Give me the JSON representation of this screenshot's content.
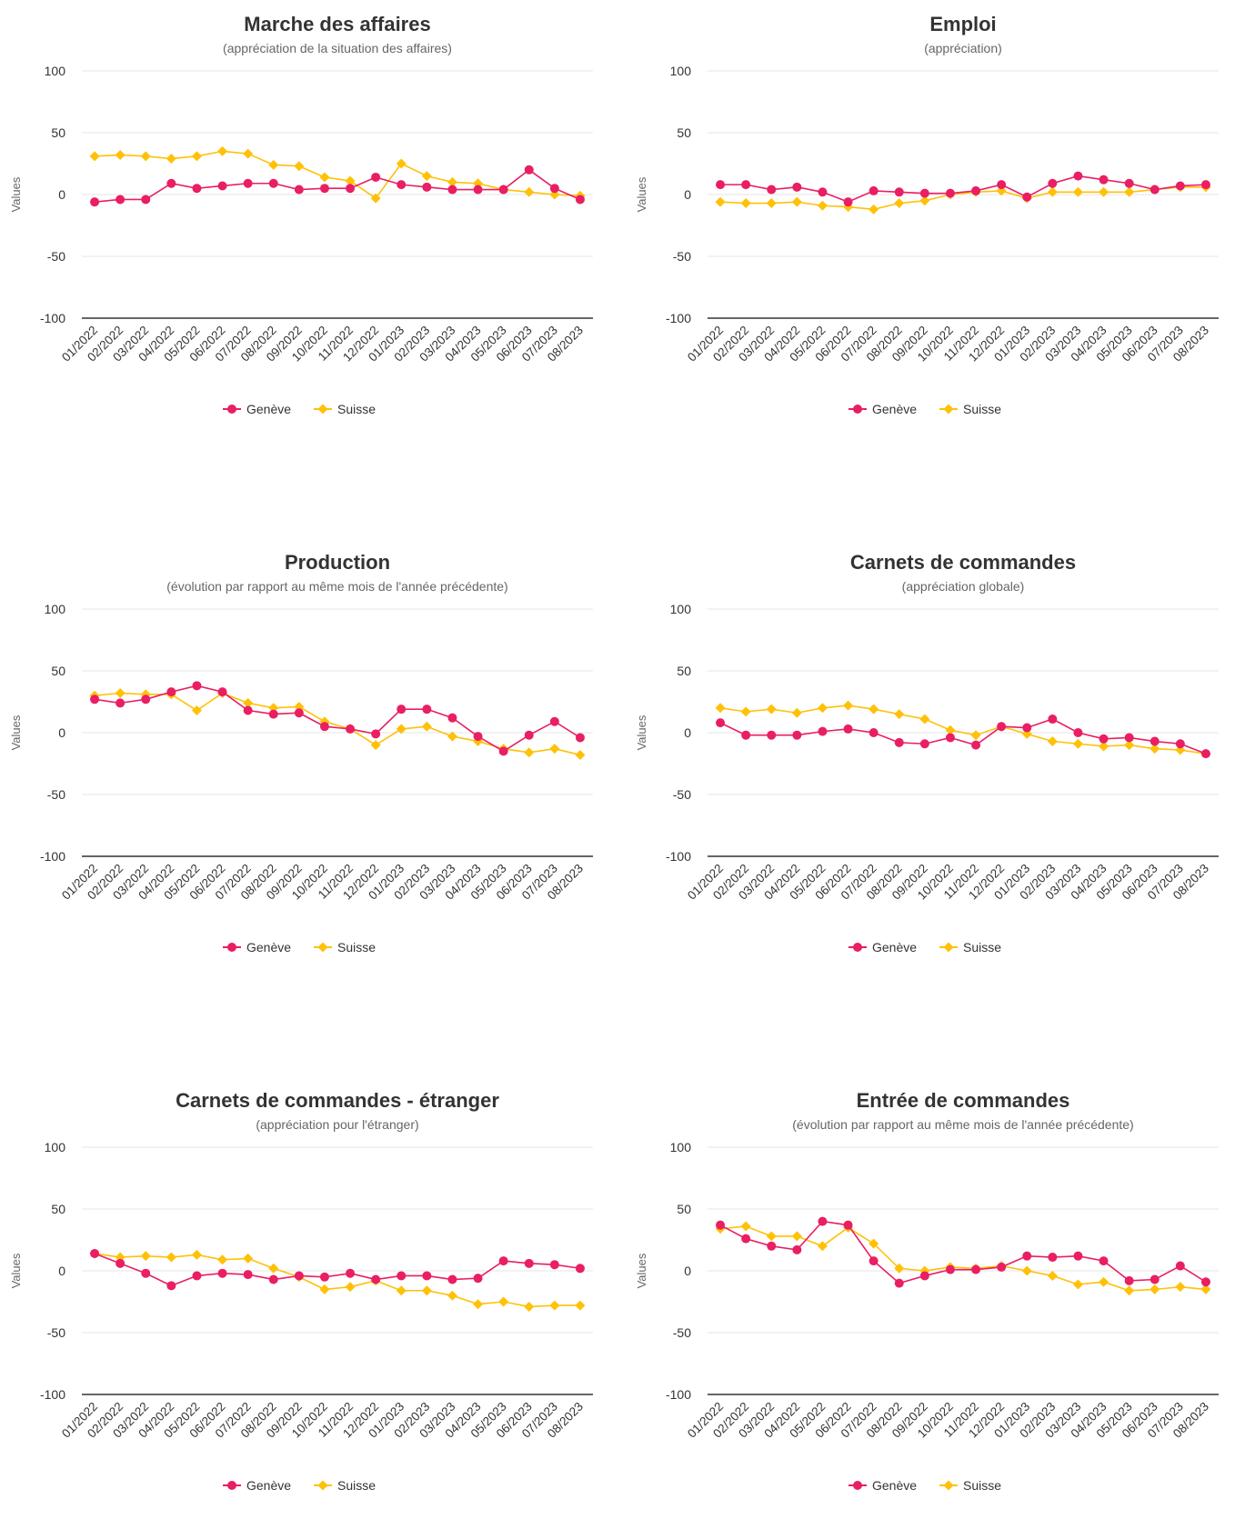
{
  "colors": {
    "geneve": "#e91e63",
    "suisse": "#ffc107"
  },
  "chart_data": [
    {
      "type": "line",
      "title": "Marche des affaires",
      "subtitle": "(appréciation de la situation des affaires)",
      "ylabel": "Values",
      "ylim": [
        -100,
        100
      ],
      "yticks": [
        "100",
        "50",
        "0",
        "-50",
        "-100"
      ],
      "legend": "bottom-center",
      "categories": [
        "01/2022",
        "02/2022",
        "03/2022",
        "04/2022",
        "05/2022",
        "06/2022",
        "07/2022",
        "08/2022",
        "09/2022",
        "10/2022",
        "11/2022",
        "12/2022",
        "01/2023",
        "02/2023",
        "03/2023",
        "04/2023",
        "05/2023",
        "06/2023",
        "07/2023",
        "08/2023"
      ],
      "series": [
        {
          "name": "Genève",
          "values": [
            -6,
            -4,
            -4,
            9,
            5,
            7,
            9,
            9,
            4,
            5,
            5,
            14,
            8,
            6,
            4,
            4,
            4,
            20,
            5,
            -4
          ]
        },
        {
          "name": "Suisse",
          "values": [
            31,
            32,
            31,
            29,
            31,
            35,
            33,
            24,
            23,
            14,
            11,
            -3,
            25,
            15,
            10,
            9,
            4,
            2,
            0,
            -1
          ]
        }
      ]
    },
    {
      "type": "line",
      "title": "Emploi",
      "subtitle": "(appréciation)",
      "ylabel": "Values",
      "ylim": [
        -100,
        100
      ],
      "yticks": [
        "100",
        "50",
        "0",
        "-50",
        "-100"
      ],
      "legend": "bottom-center",
      "categories": [
        "01/2022",
        "02/2022",
        "03/2022",
        "04/2022",
        "05/2022",
        "06/2022",
        "07/2022",
        "08/2022",
        "09/2022",
        "10/2022",
        "11/2022",
        "12/2022",
        "01/2023",
        "02/2023",
        "03/2023",
        "04/2023",
        "05/2023",
        "06/2023",
        "07/2023",
        "08/2023"
      ],
      "series": [
        {
          "name": "Genève",
          "values": [
            8,
            8,
            4,
            6,
            2,
            -6,
            3,
            2,
            1,
            1,
            3,
            8,
            -2,
            9,
            15,
            12,
            9,
            4,
            7,
            8
          ]
        },
        {
          "name": "Suisse",
          "values": [
            -6,
            -7,
            -7,
            -6,
            -9,
            -10,
            -12,
            -7,
            -5,
            0,
            2,
            3,
            -3,
            2,
            2,
            2,
            2,
            4,
            6,
            6
          ]
        }
      ]
    },
    {
      "type": "line",
      "title": "Production",
      "subtitle": "(évolution par rapport au même mois de l'année précédente)",
      "ylabel": "Values",
      "ylim": [
        -100,
        100
      ],
      "yticks": [
        "100",
        "50",
        "0",
        "-50",
        "-100"
      ],
      "legend": "bottom-center",
      "categories": [
        "01/2022",
        "02/2022",
        "03/2022",
        "04/2022",
        "05/2022",
        "06/2022",
        "07/2022",
        "08/2022",
        "09/2022",
        "10/2022",
        "11/2022",
        "12/2022",
        "01/2023",
        "02/2023",
        "03/2023",
        "04/2023",
        "05/2023",
        "06/2023",
        "07/2023",
        "08/2023"
      ],
      "series": [
        {
          "name": "Genève",
          "values": [
            27,
            24,
            27,
            33,
            38,
            33,
            18,
            15,
            16,
            5,
            3,
            -1,
            19,
            19,
            12,
            -3,
            -15,
            -2,
            9,
            -4
          ]
        },
        {
          "name": "Suisse",
          "values": [
            30,
            32,
            31,
            31,
            18,
            32,
            24,
            20,
            21,
            9,
            3,
            -10,
            3,
            5,
            -3,
            -7,
            -13,
            -16,
            -13,
            -18
          ]
        }
      ]
    },
    {
      "type": "line",
      "title": "Carnets de commandes",
      "subtitle": "(appréciation globale)",
      "ylabel": "Values",
      "ylim": [
        -100,
        100
      ],
      "yticks": [
        "100",
        "50",
        "0",
        "-50",
        "-100"
      ],
      "legend": "bottom-center",
      "categories": [
        "01/2022",
        "02/2022",
        "03/2022",
        "04/2022",
        "05/2022",
        "06/2022",
        "07/2022",
        "08/2022",
        "09/2022",
        "10/2022",
        "11/2022",
        "12/2022",
        "01/2023",
        "02/2023",
        "03/2023",
        "04/2023",
        "05/2023",
        "06/2023",
        "07/2023",
        "08/2023"
      ],
      "series": [
        {
          "name": "Genève",
          "values": [
            8,
            -2,
            -2,
            -2,
            1,
            3,
            0,
            -8,
            -9,
            -4,
            -10,
            5,
            4,
            11,
            0,
            -5,
            -4,
            -7,
            -9,
            -17
          ]
        },
        {
          "name": "Suisse",
          "values": [
            20,
            17,
            19,
            16,
            20,
            22,
            19,
            15,
            11,
            2,
            -2,
            5,
            -1,
            -7,
            -9,
            -11,
            -10,
            -13,
            -14,
            -17
          ]
        }
      ]
    },
    {
      "type": "line",
      "title": "Carnets de commandes - étranger",
      "subtitle": "(appréciation pour l'étranger)",
      "ylabel": "Values",
      "ylim": [
        -100,
        100
      ],
      "yticks": [
        "100",
        "50",
        "0",
        "-50",
        "-100"
      ],
      "legend": "bottom-center",
      "categories": [
        "01/2022",
        "02/2022",
        "03/2022",
        "04/2022",
        "05/2022",
        "06/2022",
        "07/2022",
        "08/2022",
        "09/2022",
        "10/2022",
        "11/2022",
        "12/2022",
        "01/2023",
        "02/2023",
        "03/2023",
        "04/2023",
        "05/2023",
        "06/2023",
        "07/2023",
        "08/2023"
      ],
      "series": [
        {
          "name": "Genève",
          "values": [
            14,
            6,
            -2,
            -12,
            -4,
            -2,
            -3,
            -7,
            -4,
            -5,
            -2,
            -7,
            -4,
            -4,
            -7,
            -6,
            8,
            6,
            5,
            2
          ]
        },
        {
          "name": "Suisse",
          "values": [
            14,
            11,
            12,
            11,
            13,
            9,
            10,
            2,
            -5,
            -15,
            -13,
            -8,
            -16,
            -16,
            -20,
            -27,
            -25,
            -29,
            -28,
            -28
          ]
        }
      ]
    },
    {
      "type": "line",
      "title": "Entrée de commandes",
      "subtitle": "(évolution par rapport au même mois de l'année précédente)",
      "ylabel": "Values",
      "ylim": [
        -100,
        100
      ],
      "yticks": [
        "100",
        "50",
        "0",
        "-50",
        "-100"
      ],
      "legend": "bottom-center",
      "categories": [
        "01/2022",
        "02/2022",
        "03/2022",
        "04/2022",
        "05/2022",
        "06/2022",
        "07/2022",
        "08/2022",
        "09/2022",
        "10/2022",
        "11/2022",
        "12/2022",
        "01/2023",
        "02/2023",
        "03/2023",
        "04/2023",
        "05/2023",
        "06/2023",
        "07/2023",
        "08/2023"
      ],
      "series": [
        {
          "name": "Genève",
          "values": [
            37,
            26,
            20,
            17,
            40,
            37,
            8,
            -10,
            -4,
            1,
            1,
            3,
            12,
            11,
            12,
            8,
            -8,
            -7,
            4,
            -9
          ]
        },
        {
          "name": "Suisse",
          "values": [
            34,
            36,
            28,
            28,
            20,
            35,
            22,
            2,
            0,
            3,
            2,
            4,
            0,
            -4,
            -11,
            -9,
            -16,
            -15,
            -13,
            -15
          ]
        }
      ]
    }
  ]
}
